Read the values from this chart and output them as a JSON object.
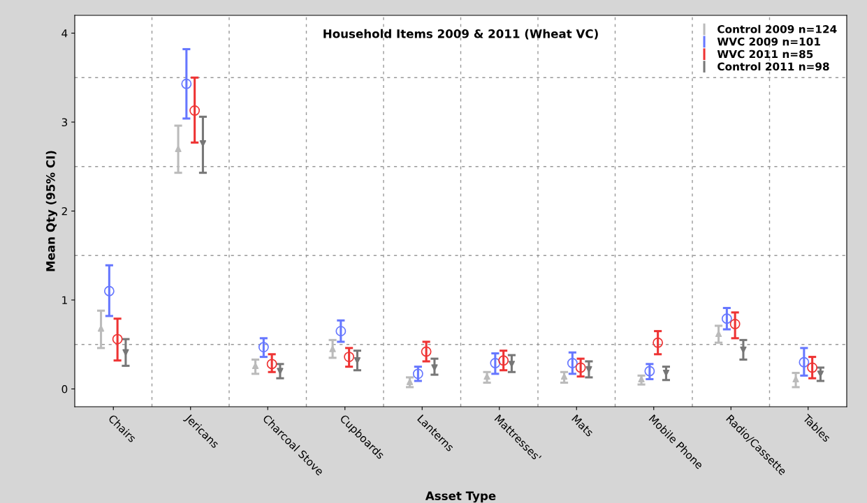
{
  "chart_data": {
    "type": "scatter",
    "title": "Household Items 2009 & 2011 (Wheat VC)",
    "xlabel": "Asset Type",
    "ylabel": "Mean Qty (95% CI)",
    "categories": [
      "Chairs",
      "Jericans",
      "Charcoal Stove",
      "Cupboards",
      "Lanterns",
      "Mattresses'",
      "Mats",
      "Mobile Phone",
      "Radio/Cassette",
      "Tables"
    ],
    "ylim": [
      -0.2,
      4.2
    ],
    "yticks": [
      0,
      1,
      2,
      3,
      4
    ],
    "grid": true,
    "legend": "top right",
    "series": [
      {
        "name": "Control 2009 n=124",
        "color": "#bbbbbb",
        "marker": "triangle",
        "values": [
          0.68,
          2.7,
          0.26,
          0.45,
          0.08,
          0.14,
          0.14,
          0.11,
          0.62,
          0.11
        ],
        "errors": [
          [
            0.46,
            0.88
          ],
          [
            2.43,
            2.96
          ],
          [
            0.17,
            0.33
          ],
          [
            0.35,
            0.55
          ],
          [
            0.02,
            0.13
          ],
          [
            0.07,
            0.19
          ],
          [
            0.07,
            0.19
          ],
          [
            0.05,
            0.15
          ],
          [
            0.52,
            0.71
          ],
          [
            0.02,
            0.18
          ]
        ]
      },
      {
        "name": "WVC 2009 n=101",
        "color": "#6677ff",
        "marker": "circle",
        "values": [
          1.1,
          3.43,
          0.47,
          0.65,
          0.17,
          0.29,
          0.29,
          0.2,
          0.79,
          0.3
        ],
        "errors": [
          [
            0.82,
            1.39
          ],
          [
            3.04,
            3.82
          ],
          [
            0.36,
            0.57
          ],
          [
            0.53,
            0.77
          ],
          [
            0.09,
            0.25
          ],
          [
            0.17,
            0.4
          ],
          [
            0.17,
            0.41
          ],
          [
            0.11,
            0.28
          ],
          [
            0.67,
            0.91
          ],
          [
            0.15,
            0.46
          ]
        ]
      },
      {
        "name": "WVC 2011 n=85",
        "color": "#ee3333",
        "marker": "circle",
        "values": [
          0.56,
          3.13,
          0.28,
          0.36,
          0.42,
          0.32,
          0.24,
          0.52,
          0.73,
          0.24
        ],
        "errors": [
          [
            0.32,
            0.79
          ],
          [
            2.77,
            3.5
          ],
          [
            0.19,
            0.39
          ],
          [
            0.25,
            0.46
          ],
          [
            0.31,
            0.53
          ],
          [
            0.21,
            0.43
          ],
          [
            0.14,
            0.34
          ],
          [
            0.39,
            0.65
          ],
          [
            0.57,
            0.86
          ],
          [
            0.12,
            0.36
          ]
        ]
      },
      {
        "name": "Control 2011 n=98",
        "color": "#777777",
        "marker": "triangle_down",
        "values": [
          0.41,
          2.76,
          0.2,
          0.32,
          0.24,
          0.28,
          0.22,
          0.18,
          0.44,
          0.17
        ],
        "errors": [
          [
            0.26,
            0.56
          ],
          [
            2.43,
            3.06
          ],
          [
            0.12,
            0.28
          ],
          [
            0.21,
            0.43
          ],
          [
            0.16,
            0.34
          ],
          [
            0.19,
            0.38
          ],
          [
            0.13,
            0.31
          ],
          [
            0.1,
            0.25
          ],
          [
            0.33,
            0.55
          ],
          [
            0.09,
            0.24
          ]
        ]
      }
    ]
  }
}
